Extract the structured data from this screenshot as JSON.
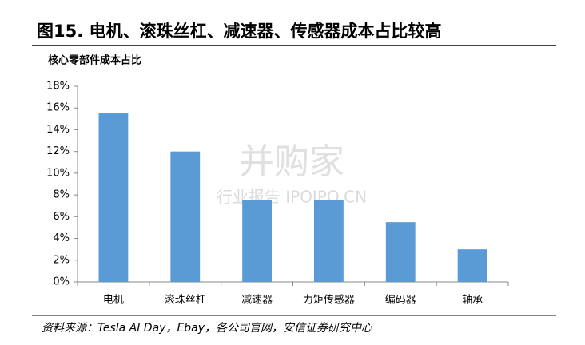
{
  "chart_data": {
    "type": "bar",
    "title": "图15. 电机、滚珠丝杠、减速器、传感器成本占比较高",
    "subtitle": "核心零部件成本占比",
    "categories": [
      "电机",
      "滚珠丝杠",
      "减速器",
      "力矩传感器",
      "编码器",
      "轴承"
    ],
    "values": [
      15.5,
      12,
      7.5,
      7.5,
      5.5,
      3
    ],
    "color": "#5b9bd5",
    "ylim": [
      0,
      18
    ],
    "yticks": [
      {
        "value": 0,
        "label": "0%"
      },
      {
        "value": 2,
        "label": "2%"
      },
      {
        "value": 4,
        "label": "4%"
      },
      {
        "value": 6,
        "label": "6%"
      },
      {
        "value": 8,
        "label": "8%"
      },
      {
        "value": 10,
        "label": "10%"
      },
      {
        "value": 12,
        "label": "12%"
      },
      {
        "value": 14,
        "label": "14%"
      },
      {
        "value": 16,
        "label": "16%"
      },
      {
        "value": 18,
        "label": "18%"
      }
    ],
    "grid": false,
    "source": "资料来源：Tesla AI Day，Ebay，各公司官网，安信证券研究中心",
    "watermark": [
      "并购家",
      "行业报告 IPOIPO.CN"
    ]
  }
}
